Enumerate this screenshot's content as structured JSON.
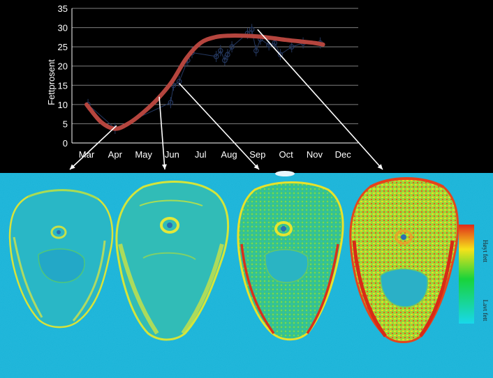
{
  "chart_data": {
    "type": "line",
    "title": "",
    "xlabel": "",
    "ylabel": "Fettprosent",
    "categories": [
      "Mar",
      "Apr",
      "May",
      "Jun",
      "Jul",
      "Aug",
      "Sep",
      "Oct",
      "Nov",
      "Dec"
    ],
    "ylim": [
      0,
      35
    ],
    "yticks": [
      0,
      5,
      10,
      15,
      20,
      25,
      30,
      35
    ],
    "grid": true,
    "colors": {
      "background": "#000000",
      "fit_line": "#b5453e",
      "observations": "#24375e",
      "grid": "#7f7f7f",
      "scan_background": "#19b3d8"
    },
    "fit_curve": {
      "x": [
        0,
        0.5,
        1.0,
        1.5,
        2.0,
        2.5,
        3.0,
        3.5,
        4.0,
        4.5,
        5.0,
        5.5,
        6.0,
        6.5,
        7.0,
        7.5,
        8.0,
        8.3
      ],
      "y": [
        10,
        5.5,
        3.7,
        5.2,
        8.0,
        11.5,
        16.0,
        22.0,
        26.0,
        27.5,
        27.9,
        27.9,
        27.7,
        27.3,
        26.8,
        26.4,
        26.0,
        25.6
      ]
    },
    "observations": {
      "x": [
        0.05,
        1.0,
        2.95,
        3.05,
        3.25,
        3.55,
        3.7,
        4.55,
        4.7,
        4.85,
        4.95,
        5.1,
        5.65,
        5.8,
        5.95,
        6.1,
        6.4,
        6.6,
        6.8,
        7.2,
        7.6,
        8.2
      ],
      "y": [
        10,
        3.8,
        10.5,
        15,
        16,
        21.5,
        23.5,
        22.5,
        24,
        21.5,
        23,
        25,
        28.5,
        29.5,
        24,
        27,
        25.5,
        26,
        23,
        25,
        26,
        26
      ]
    },
    "colorbar": {
      "high_label": "Høyt fett",
      "low_label": "Lavt fett"
    }
  }
}
